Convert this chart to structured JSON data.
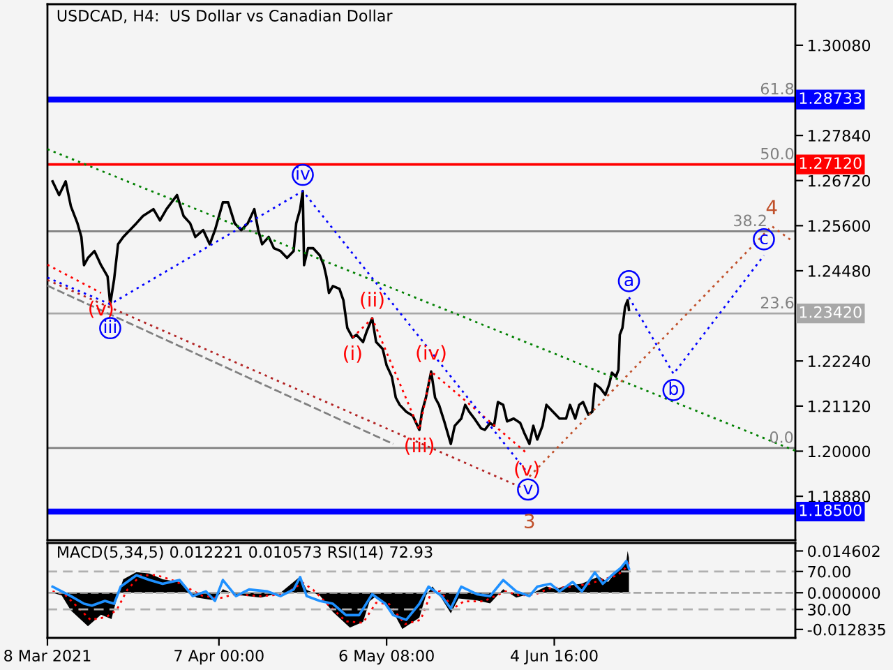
{
  "chart_data": [
    {
      "type": "line",
      "title": "USDCAD, H4:  US Dollar vs Canadian Dollar",
      "tick_labels": "y",
      "xlim": [
        "2021-03-08T00:00",
        "2021-07-16T20:00"
      ],
      "ylim": [
        1.1779,
        1.311
      ],
      "yticks": [
        {
          "value": 1.1888,
          "label": "1.18880"
        },
        {
          "value": 1.2,
          "label": "1.20000"
        },
        {
          "value": 1.2112,
          "label": "1.21120"
        },
        {
          "value": 1.2224,
          "label": "1.22240"
        },
        {
          "value": 1.2448,
          "label": "1.24480"
        },
        {
          "value": 1.256,
          "label": "1.25600"
        },
        {
          "value": 1.2672,
          "label": "1.26720"
        },
        {
          "value": 1.2784,
          "label": "1.27840"
        },
        {
          "value": 1.3008,
          "label": "1.30080"
        }
      ],
      "series": [
        {
          "color": "#000000",
          "x": [
            "2021-03-08T21:30",
            "2021-03-10T01:00",
            "2021-03-11T04:30",
            "2021-03-12T02:30",
            "2021-03-13T06:00",
            "2021-03-13T22:30",
            "2021-03-14T09:30",
            "2021-03-15T02:00",
            "2021-03-16T05:30",
            "2021-03-17T09:00",
            "2021-03-18T12:30",
            "2021-03-18T23:30",
            "2021-03-19T16:00",
            "2021-03-20T08:30",
            "2021-03-21T06:30",
            "2021-03-22T10:00",
            "2021-03-23T13:30",
            "2021-03-24T17:00",
            "2021-03-26T13:00",
            "2021-03-27T16:30",
            "2021-03-28T20:00",
            "2021-03-30T16:00",
            "2021-03-31T19:30",
            "2021-04-01T23:00",
            "2021-04-02T21:00",
            "2021-04-04T06:00",
            "2021-04-05T09:30",
            "2021-04-06T07:30",
            "2021-04-07T16:30",
            "2021-04-08T14:30",
            "2021-04-09T18:00",
            "2021-04-10T21:30",
            "2021-04-12T01:00",
            "2021-04-13T04:30",
            "2021-04-13T21:00",
            "2021-04-14T13:30",
            "2021-04-15T17:00",
            "2021-04-16T15:00",
            "2021-04-17T18:30",
            "2021-04-18T22:00",
            "2021-04-20T01:30",
            "2021-04-20T12:30",
            "2021-04-21T05:00",
            "2021-04-21T16:00",
            "2021-04-21T21:30",
            "2021-04-22T14:00",
            "2021-04-23T12:00",
            "2021-04-24T15:30",
            "2021-04-25T08:00",
            "2021-04-25T19:00",
            "2021-04-26T06:00",
            "2021-04-26T22:30",
            "2021-04-28T02:00",
            "2021-04-28T18:30",
            "2021-04-29T11:00",
            "2021-04-30T09:00",
            "2021-05-01T01:30",
            "2021-05-02T05:00",
            "2021-05-02T21:30",
            "2021-05-03T19:30",
            "2021-05-04T12:00",
            "2021-05-05T15:30",
            "2021-05-06T08:00",
            "2021-05-07T06:00",
            "2021-05-07T22:30",
            "2021-05-08T15:00",
            "2021-05-09T18:30",
            "2021-05-10T22:00",
            "2021-05-12T01:30",
            "2021-05-12T12:30",
            "2021-05-13T05:00",
            "2021-05-14T03:00",
            "2021-05-14T19:30",
            "2021-05-15T12:00",
            "2021-05-16T10:00",
            "2021-05-17T13:30",
            "2021-05-18T06:00",
            "2021-05-19T09:30",
            "2021-05-20T02:00",
            "2021-05-20T18:30",
            "2021-05-21T16:30",
            "2021-05-22T20:00",
            "2021-05-23T12:30",
            "2021-05-24T10:30",
            "2021-05-25T03:00",
            "2021-05-25T19:30",
            "2021-05-26T17:30",
            "2021-05-27T10:00",
            "2021-05-28T13:30",
            "2021-05-29T17:00",
            "2021-05-30T09:30",
            "2021-05-31T07:30",
            "2021-06-01T00:00",
            "2021-06-01T16:30",
            "2021-06-02T14:30",
            "2021-06-03T07:00",
            "2021-06-04T10:30",
            "2021-06-05T14:00",
            "2021-06-06T17:30",
            "2021-06-07T10:00",
            "2021-06-08T08:00",
            "2021-06-09T00:30",
            "2021-06-09T17:00",
            "2021-06-10T15:00",
            "2021-06-11T07:30",
            "2021-06-11T18:30",
            "2021-06-12T16:30",
            "2021-06-13T14:30",
            "2021-06-14T07:00",
            "2021-06-14T18:00",
            "2021-06-15T10:30",
            "2021-06-15T21:30",
            "2021-06-16T03:00",
            "2021-06-16T14:00",
            "2021-06-17T01:00",
            "2021-06-17T12:00",
            "2021-06-17T17:30"
          ],
          "values": [
            1.267,
            1.2636,
            1.267,
            1.2608,
            1.2566,
            1.2532,
            1.2462,
            1.248,
            1.2497,
            1.2462,
            1.2434,
            1.2365,
            1.2427,
            1.2514,
            1.2532,
            1.2549,
            1.2566,
            1.2584,
            1.2601,
            1.2573,
            1.2601,
            1.2636,
            1.2584,
            1.2566,
            1.2532,
            1.2549,
            1.2514,
            1.2549,
            1.2618,
            1.2618,
            1.2566,
            1.2549,
            1.2566,
            1.2601,
            1.2549,
            1.2514,
            1.2532,
            1.2504,
            1.2497,
            1.248,
            1.2497,
            1.2566,
            1.2601,
            1.2646,
            1.2462,
            1.2504,
            1.2504,
            1.2486,
            1.2462,
            1.2434,
            1.2393,
            1.241,
            1.2403,
            1.2375,
            1.2306,
            1.2282,
            1.2289,
            1.2271,
            1.2299,
            1.233,
            1.2271,
            1.2254,
            1.2213,
            1.2185,
            1.2133,
            1.2115,
            1.2098,
            1.2088,
            1.2053,
            1.2098,
            1.2133,
            1.2198,
            1.2133,
            1.2115,
            1.2074,
            1.2018,
            1.2063,
            1.2081,
            1.2115,
            1.2098,
            1.2081,
            1.2057,
            1.2053,
            1.207,
            1.2063,
            1.2122,
            1.2115,
            1.2074,
            1.2081,
            1.207,
            1.2046,
            1.2018,
            1.2063,
            1.2029,
            1.2063,
            1.2115,
            1.2098,
            1.2081,
            1.2081,
            1.2115,
            1.2081,
            1.2115,
            1.2122,
            1.2091,
            1.2098,
            1.2167,
            1.2157,
            1.214,
            1.2167,
            1.2195,
            1.2185,
            1.2202,
            1.2289,
            1.2306,
            1.2358,
            1.2375,
            1.2351
          ]
        },
        {
          "line_style": "dotted",
          "color": "#008000",
          "x": [
            "2021-03-08T00:00",
            "2021-07-16T20:00"
          ],
          "values": [
            1.275,
            1.2001
          ]
        },
        {
          "line_style": "dashed",
          "color": "#808080",
          "x": [
            "2021-03-08T00:00",
            "2021-05-07T11:30"
          ],
          "values": [
            1.2411,
            1.2018
          ]
        },
        {
          "line_style": "dotted",
          "color": "#b22222",
          "x": [
            "2021-03-08T00:00",
            "2021-05-30T09:30"
          ],
          "values": [
            1.2425,
            1.1907
          ]
        },
        {
          "line_style": "dotted",
          "color": "#ff0000",
          "x": [
            "2021-03-08T00:00",
            "2021-03-17T09:00"
          ],
          "values": [
            1.2463,
            1.2393
          ]
        },
        {
          "line_style": "dotted",
          "color": "#ff0000",
          "x": [
            "2021-04-30T09:00",
            "2021-05-03T19:30",
            "2021-05-12T01:30",
            "2021-05-14T03:00",
            "2021-05-30T20:30"
          ],
          "values": [
            1.2282,
            1.233,
            1.2053,
            1.2198,
            1.1995
          ]
        },
        {
          "line_style": "dotted",
          "color": "#0000ff",
          "x": [
            "2021-03-08T00:00",
            "2021-03-18T23:30",
            "2021-04-21T16:00",
            "2021-05-31T02:00"
          ],
          "values": [
            1.2431,
            1.2365,
            1.2646,
            1.1945
          ]
        },
        {
          "line_style": "dotted",
          "color": "#0000ff",
          "x": [
            "2021-06-17T17:30",
            "2021-06-25T12:30",
            "2021-07-11T08:00"
          ],
          "values": [
            1.2382,
            1.2192,
            1.2486
          ]
        },
        {
          "line_style": "dotted",
          "color": "#c0502a",
          "x": [
            "2021-05-31T07:30",
            "2021-07-12T17:00",
            "2021-07-16T09:00"
          ],
          "values": [
            1.1937,
            1.2559,
            1.2521
          ]
        }
      ],
      "ref_lines": [
        {
          "axis": "y",
          "value": 1.28733,
          "label": "1.28733",
          "color": "#0000ff"
        },
        {
          "axis": "y",
          "value": 1.2712,
          "label": "1.27120",
          "color": "#ff0000"
        },
        {
          "axis": "y",
          "value": 1.2546,
          "color": "#808080"
        },
        {
          "axis": "y",
          "value": 1.2342,
          "label": "1.23420",
          "color": "#a8a8a8"
        },
        {
          "axis": "y",
          "value": 1.2008,
          "color": "#808080"
        },
        {
          "axis": "y",
          "value": 1.185,
          "label": "1.18500",
          "color": "#0000ff"
        }
      ],
      "annotations": [
        {
          "text": "(v)",
          "x": "2021-03-17T09:00",
          "y": 1.2393
        },
        {
          "text": "iii",
          "x": "2021-03-18T23:30",
          "y": 1.2365
        },
        {
          "text": "iv",
          "x": "2021-04-21T16:00",
          "y": 1.2646
        },
        {
          "text": "(i)",
          "x": "2021-04-30T09:00",
          "y": 1.2282
        },
        {
          "text": "(ii)",
          "x": "2021-05-03T19:30",
          "y": 1.233
        },
        {
          "text": "(iii)",
          "x": "2021-05-12T01:30",
          "y": 1.2053
        },
        {
          "text": "(iv)",
          "x": "2021-05-14T03:00",
          "y": 1.2198
        },
        {
          "text": "(v)",
          "x": "2021-05-30T20:30",
          "y": 1.1995
        },
        {
          "text": "v",
          "x": "2021-05-31T02:00",
          "y": 1.1945
        },
        {
          "text": "3",
          "x": "2021-05-31T07:30",
          "y": 1.1937
        },
        {
          "text": "a",
          "x": "2021-06-17T17:30",
          "y": 1.2382
        },
        {
          "text": "b",
          "x": "2021-06-25T12:30",
          "y": 1.2192
        },
        {
          "text": "c",
          "x": "2021-07-11T08:00",
          "y": 1.2486
        },
        {
          "text": "4",
          "x": "2021-07-12T17:00",
          "y": 1.2559
        },
        {
          "text": "61.8",
          "x": "2021-07-10T15:30",
          "y": 1.28733
        },
        {
          "text": "50.0",
          "x": "2021-07-10T15:30",
          "y": 1.2712
        },
        {
          "text": "38.2",
          "x": "2021-07-10T15:30",
          "y": 1.2546
        },
        {
          "text": "23.6",
          "x": "2021-07-10T15:30",
          "y": 1.2342
        },
        {
          "text": "0.0",
          "x": "2021-07-12T06:00",
          "y": 1.2008
        }
      ]
    },
    {
      "type": "area",
      "title": "MACD(5,34,5) 0.012221 0.010573 RSI(14) 72.93",
      "grid": "y",
      "xlim": [
        "2021-03-08T00:00",
        "2021-07-16T20:00"
      ],
      "xticks": [
        {
          "value": "2021-03-08T00:00",
          "label": "8 Mar 2021"
        },
        {
          "value": "2021-04-07T00:00",
          "label": "7 Apr 00:00"
        },
        {
          "value": "2021-05-06T08:00",
          "label": "6 May 08:00"
        },
        {
          "value": "2021-06-04T16:00",
          "label": "4 Jun 16:00"
        }
      ],
      "ylim": [
        0,
        100
      ],
      "yticks": [
        {
          "value": 30,
          "label": "30.00"
        },
        {
          "value": 70,
          "label": "70.00"
        }
      ],
      "y2lim": [
        -0.0158,
        0.0174
      ],
      "y2ticks": [
        -0.012835,
        {
          "value": 0,
          "label": "0.000000"
        },
        0.014602
      ],
      "series": [
        {
          "axis": "y2",
          "color": "#000000",
          "x": [
            "2021-03-08T21:30",
            "2021-03-10T12:00",
            "2021-03-12T02:30",
            "2021-03-15T02:00",
            "2021-03-17T09:00",
            "2021-03-19T05:00",
            "2021-03-20T03:00",
            "2021-03-21T06:30",
            "2021-03-23T13:30",
            "2021-03-25T20:30",
            "2021-03-28T03:30",
            "2021-03-31T03:00",
            "2021-04-01T12:00",
            "2021-04-03T02:30",
            "2021-04-06T07:30",
            "2021-04-07T16:30",
            "2021-04-09T23:30",
            "2021-04-14T08:00",
            "2021-04-17T18:30",
            "2021-04-21T05:00",
            "2021-04-22T08:30",
            "2021-04-24T15:30",
            "2021-04-26T22:30",
            "2021-04-29T22:00",
            "2021-05-02T05:00",
            "2021-05-03T08:30",
            "2021-05-04T12:00",
            "2021-05-06T08:00",
            "2021-05-07T11:30",
            "2021-05-09T02:00",
            "2021-05-12T01:30",
            "2021-05-13T05:00",
            "2021-05-14T08:30",
            "2021-05-15T23:00",
            "2021-05-17T13:30",
            "2021-05-18T22:30",
            "2021-05-22T03:30",
            "2021-05-24T10:30",
            "2021-05-26T17:30",
            "2021-05-29T00:30",
            "2021-06-01T00:00",
            "2021-06-03T07:00",
            "2021-06-04T21:30",
            "2021-06-06T06:30",
            "2021-06-09T11:30",
            "2021-06-12T11:00",
            "2021-06-14T01:30",
            "2021-06-15T10:30",
            "2021-06-16T14:00",
            "2021-06-17T06:30",
            "2021-06-17T12:00",
            "2021-06-17T17:30"
          ],
          "values": [
            0.0,
            -0.001,
            -0.0062,
            -0.0117,
            -0.0077,
            -0.0092,
            -0.002,
            0.0047,
            0.0072,
            0.0067,
            0.0047,
            0.0037,
            0.0005,
            -0.0017,
            -0.0027,
            0.0012,
            -0.0007,
            -0.0017,
            0.0,
            0.0057,
            0.001,
            -0.001,
            -0.0067,
            -0.0122,
            -0.0102,
            -0.003,
            -0.0012,
            -0.004,
            -0.0067,
            -0.0127,
            -0.0087,
            -0.001,
            0.0022,
            -0.002,
            -0.0072,
            -0.002,
            -0.0027,
            -0.0037,
            0.0012,
            -0.0017,
            0.0,
            0.0022,
            0.0012,
            0.0022,
            0.0032,
            0.0057,
            0.0037,
            0.0072,
            0.009,
            0.011,
            0.014602,
            0.012221
          ]
        },
        {
          "type": "line",
          "axis": "y2",
          "line_style": "dotted",
          "color": "#ff0000",
          "x": [
            "2021-03-08T21:30",
            "2021-03-10T23:00",
            "2021-03-13T06:00",
            "2021-03-15T13:00",
            "2021-03-18T07:00",
            "2021-03-20T03:00",
            "2021-03-21T23:00",
            "2021-03-24T06:00",
            "2021-03-27T00:00",
            "2021-03-30T10:30",
            "2021-04-01T17:30",
            "2021-04-04T00:30",
            "2021-04-07T00:00",
            "2021-04-09T18:00",
            "2021-04-14T08:00",
            "2021-04-18T11:00",
            "2021-04-21T16:00",
            "2021-04-23T12:00",
            "2021-04-26T06:00",
            "2021-04-29T05:30",
            "2021-05-02T05:00",
            "2021-05-04T12:00",
            "2021-05-06T19:00",
            "2021-05-09T13:00",
            "2021-05-12T07:00",
            "2021-05-14T03:00",
            "2021-05-15T17:30",
            "2021-05-18T00:30",
            "2021-05-19T20:30",
            "2021-05-23T07:00",
            "2021-05-27T04:30",
            "2021-05-29T17:00",
            "2021-06-01T11:00",
            "2021-06-03T18:00",
            "2021-06-07T04:30",
            "2021-06-10T15:00",
            "2021-06-12T22:00",
            "2021-06-15T16:00",
            "2021-06-17T01:00",
            "2021-06-17T17:30"
          ],
          "values": [
            0.0005,
            -0.0005,
            -0.005,
            -0.0095,
            -0.0085,
            -0.006,
            0.001,
            0.006,
            0.0062,
            0.004,
            0.0015,
            -0.001,
            -0.002,
            -0.0005,
            -0.0012,
            -0.0005,
            0.0035,
            0.001,
            -0.0045,
            -0.01,
            -0.0105,
            -0.0035,
            -0.004,
            -0.011,
            -0.0095,
            0.0,
            0.0005,
            -0.0055,
            -0.003,
            -0.003,
            0.0005,
            -0.001,
            -0.0005,
            0.0015,
            0.002,
            0.003,
            0.0045,
            0.006,
            0.0085,
            0.010573
          ]
        },
        {
          "type": "line",
          "color": "#1e90ff",
          "x": [
            "2021-03-08T21:30",
            "2021-03-10T12:00",
            "2021-03-12T02:30",
            "2021-03-14T09:30",
            "2021-03-15T18:30",
            "2021-03-18T01:30",
            "2021-03-19T16:00",
            "2021-03-20T19:30",
            "2021-03-23T13:30",
            "2021-03-25T20:30",
            "2021-03-28T03:30",
            "2021-03-31T03:00",
            "2021-04-02T10:00",
            "2021-04-04T17:00",
            "2021-04-06T07:30",
            "2021-04-07T16:30",
            "2021-04-09T23:30",
            "2021-04-12T06:30",
            "2021-04-15T11:30",
            "2021-04-17T18:30",
            "2021-04-20T01:30",
            "2021-04-21T05:00",
            "2021-04-22T08:30",
            "2021-04-24T15:30",
            "2021-04-26T22:30",
            "2021-04-29T05:30",
            "2021-05-01T12:30",
            "2021-05-03T19:30",
            "2021-05-06T02:30",
            "2021-05-07T11:30",
            "2021-05-09T18:30",
            "2021-05-12T01:30",
            "2021-05-13T16:00",
            "2021-05-15T23:00",
            "2021-05-17T13:30",
            "2021-05-19T09:30",
            "2021-05-22T03:30",
            "2021-05-24T10:30",
            "2021-05-26T17:30",
            "2021-05-29T00:30",
            "2021-05-31T07:30",
            "2021-06-01T16:30",
            "2021-06-03T23:30",
            "2021-06-05T14:00",
            "2021-06-07T21:00",
            "2021-06-09T11:30",
            "2021-06-11T18:30",
            "2021-06-13T03:30",
            "2021-06-14T18:00",
            "2021-06-16T08:30",
            "2021-06-17T06:30",
            "2021-06-17T17:30"
          ],
          "values": [
            54,
            49,
            44,
            36,
            34,
            39,
            36,
            54,
            66,
            61,
            57,
            61,
            44,
            49,
            39,
            61,
            44,
            51,
            49,
            44,
            51,
            64,
            44,
            39,
            36,
            24,
            24,
            46,
            36,
            24,
            19,
            36,
            54,
            44,
            31,
            54,
            46,
            44,
            61,
            49,
            44,
            54,
            57,
            49,
            59,
            49,
            69,
            57,
            66,
            74,
            81,
            72.93
          ]
        }
      ],
      "ref_lines": [
        {
          "axis": "y2",
          "value": 0,
          "color": "#a8a8a8",
          "line_style": "dashed"
        }
      ]
    }
  ]
}
